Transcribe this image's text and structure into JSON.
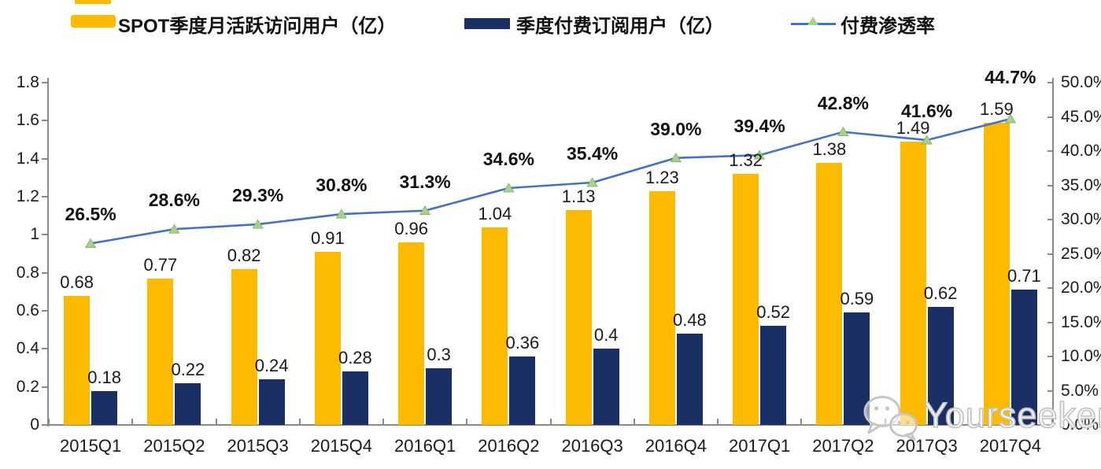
{
  "legend": {
    "items": [
      {
        "label": "SPOT季度月活跃访问用户（亿）",
        "swatch": "bar",
        "color": "#FCBA00"
      },
      {
        "label": "季度付费订阅用户（亿）",
        "swatch": "bar",
        "color": "#1A2F63"
      },
      {
        "label": "付费渗透率",
        "swatch": "line-triangle-marker",
        "line_color": "#4472C4",
        "marker_color": "#A9D18E"
      }
    ]
  },
  "chart_data": {
    "type": "combo-bar-line",
    "categories": [
      "2015Q1",
      "2015Q2",
      "2015Q3",
      "2015Q4",
      "2016Q1",
      "2016Q2",
      "2016Q3",
      "2016Q4",
      "2017Q1",
      "2017Q2",
      "2017Q3",
      "2017Q4"
    ],
    "series": [
      {
        "name": "SPOT季度月活跃访问用户（亿）",
        "type": "bar",
        "axis": "left",
        "color": "#FCBA00",
        "values": [
          0.68,
          0.77,
          0.82,
          0.91,
          0.96,
          1.04,
          1.13,
          1.23,
          1.32,
          1.38,
          1.49,
          1.59
        ],
        "labels": [
          "0.68",
          "0.77",
          "0.82",
          "0.91",
          "0.96",
          "1.04",
          "1.13",
          "1.23",
          "1.32",
          "1.38",
          "1.49",
          "1.59"
        ]
      },
      {
        "name": "季度付费订阅用户（亿）",
        "type": "bar",
        "axis": "left",
        "color": "#1A2F63",
        "values": [
          0.18,
          0.22,
          0.24,
          0.28,
          0.3,
          0.36,
          0.4,
          0.48,
          0.52,
          0.59,
          0.62,
          0.71
        ],
        "labels": [
          "0.18",
          "0.22",
          "0.24",
          "0.28",
          "0.3",
          "0.36",
          "0.4",
          "0.48",
          "0.52",
          "0.59",
          "0.62",
          "0.71"
        ]
      },
      {
        "name": "付费渗透率",
        "type": "line",
        "axis": "right",
        "color": "#4472C4",
        "marker": "triangle",
        "marker_color": "#A9D18E",
        "marker_edge_color": "#86B060",
        "values": [
          26.5,
          28.6,
          29.3,
          30.8,
          31.3,
          34.6,
          35.4,
          39.0,
          39.4,
          42.8,
          41.6,
          44.7
        ],
        "labels": [
          "26.5%",
          "28.6%",
          "29.3%",
          "30.8%",
          "31.3%",
          "34.6%",
          "35.4%",
          "39.0%",
          "39.4%",
          "42.8%",
          "41.6%",
          "44.7%"
        ]
      }
    ],
    "left_axis": {
      "min": 0,
      "max": 1.8,
      "tick_labels": [
        "1.8",
        "1.6",
        "1.4",
        "1.2",
        "1",
        "0.8",
        "0.6",
        "0.4",
        "0.2",
        "0"
      ]
    },
    "right_axis": {
      "min": 0,
      "max": 50,
      "tick_labels": [
        "50.0%",
        "45.0%",
        "40.0%",
        "35.0%",
        "30.0%",
        "25.0%",
        "20.0%",
        "15.0%",
        "10.0%",
        "5.0%",
        "0.0%"
      ]
    },
    "grid": false,
    "legend_position": "top"
  },
  "watermark": {
    "text": "Yourseeker",
    "icon": "wechat-icon"
  }
}
